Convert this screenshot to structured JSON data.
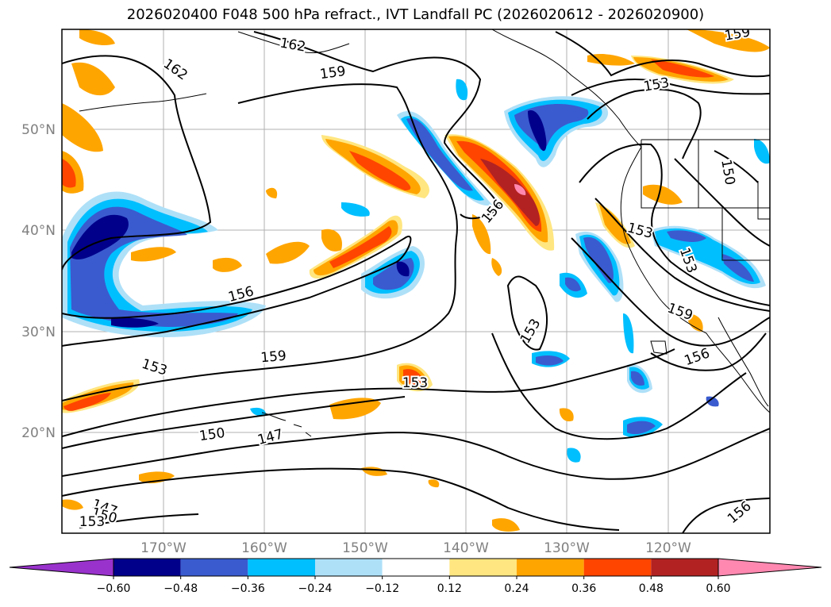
{
  "title": "2026020400 F048 500 hPa refract., IVT Landfall PC (2026020612 - 2026020900)",
  "lat_labels": [
    "50°N",
    "40°N",
    "30°N",
    "20°N"
  ],
  "lon_labels": [
    "170°W",
    "160°W",
    "150°W",
    "140°W",
    "130°W",
    "120°W"
  ],
  "colorbar": {
    "ticks": [
      "−0.60",
      "−0.48",
      "−0.36",
      "−0.24",
      "−0.12",
      "0.12",
      "0.24",
      "0.36",
      "0.48",
      "0.60"
    ],
    "colors": [
      "#9932cc",
      "#00008b",
      "#3a5bcf",
      "#00bfff",
      "#aee0f8",
      "#ffffff",
      "#ffe680",
      "#ffa500",
      "#ff4500",
      "#b22222",
      "#ff88b0"
    ]
  },
  "contour_labels": [
    {
      "text": "162",
      "angle": 35
    },
    {
      "text": "162",
      "angle": 10
    },
    {
      "text": "159",
      "angle": -8
    },
    {
      "text": "159",
      "angle": -10
    },
    {
      "text": "153",
      "angle": -10
    },
    {
      "text": "150",
      "angle": 80
    },
    {
      "text": "156",
      "angle": -50
    },
    {
      "text": "153",
      "angle": 15
    },
    {
      "text": "153",
      "angle": 70
    },
    {
      "text": "159",
      "angle": 20
    },
    {
      "text": "156",
      "angle": -20
    },
    {
      "text": "156",
      "angle": -15
    },
    {
      "text": "159",
      "angle": -5
    },
    {
      "text": "153",
      "angle": 18
    },
    {
      "text": "153",
      "angle": 0
    },
    {
      "text": "150",
      "angle": -8
    },
    {
      "text": "147",
      "angle": -15
    },
    {
      "text": "153",
      "angle": -60
    },
    {
      "text": "147",
      "angle": 20
    },
    {
      "text": "150",
      "angle": 15
    },
    {
      "text": "153",
      "angle": 0
    },
    {
      "text": "156",
      "angle": -40
    }
  ]
}
